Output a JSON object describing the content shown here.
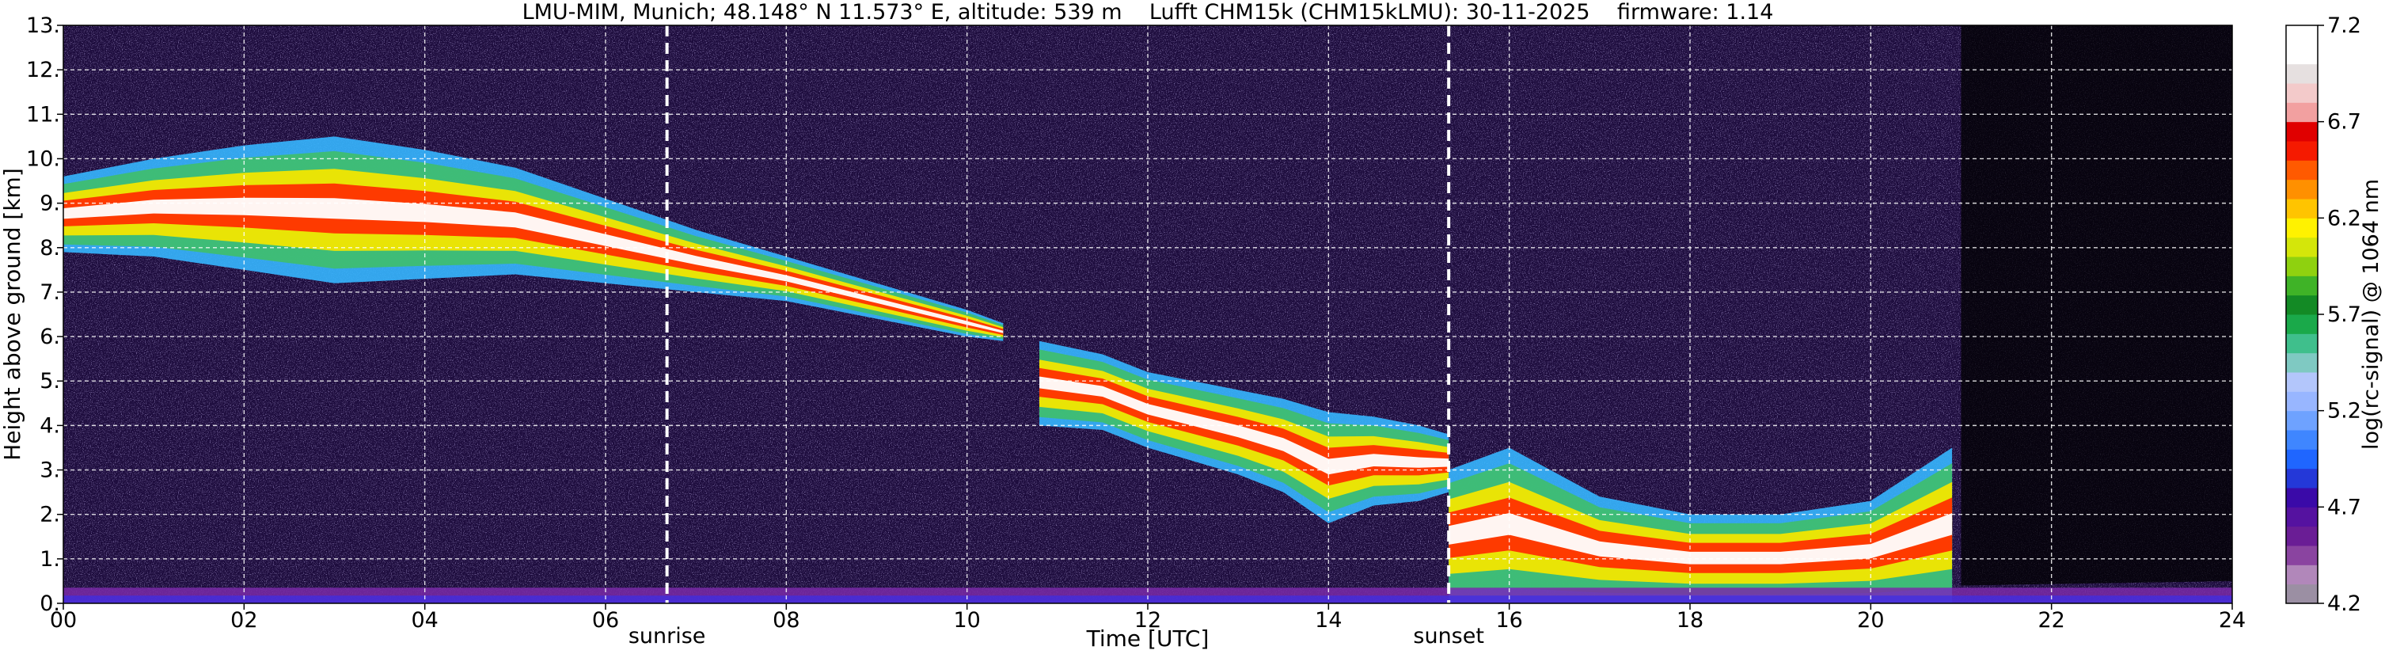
{
  "chart_data": {
    "type": "heatmap",
    "title": "LMU-MIM, Munich; 48.148° N 11.573° E, altitude: 539 m    Lufft CHM15k (CHM15kLMU): 30-11-2025    firmware: 1.14",
    "xlabel": "Time [UTC]",
    "ylabel": "Height above ground [km]",
    "xlim": [
      0,
      24
    ],
    "ylim": [
      0,
      13
    ],
    "x_ticks": [
      0,
      2,
      4,
      6,
      8,
      10,
      12,
      14,
      16,
      18,
      20,
      22,
      24
    ],
    "x_tick_labels": [
      "00",
      "02",
      "04",
      "06",
      "08",
      "10",
      "12",
      "14",
      "16",
      "18",
      "20",
      "22",
      "24"
    ],
    "y_ticks": [
      0,
      1,
      2,
      3,
      4,
      5,
      6,
      7,
      8,
      9,
      10,
      11,
      12,
      13
    ],
    "y_tick_labels": [
      "0.",
      "1.",
      "2.",
      "3.",
      "4.",
      "5.",
      "6.",
      "7.",
      "8.",
      "9.",
      "10.",
      "11.",
      "12.",
      "13."
    ],
    "grid": true,
    "colorbar": {
      "label": "log(rc-signal) @ 1064 nm",
      "range": [
        4.2,
        7.2
      ],
      "ticks": [
        4.2,
        4.7,
        5.2,
        5.7,
        6.2,
        6.7,
        7.2
      ],
      "tick_labels": [
        "4.2",
        "4.7",
        "5.2",
        "5.7",
        "6.2",
        "6.7",
        "7.2"
      ],
      "colors": [
        "#9b8fa3",
        "#b187ba",
        "#8a44a0",
        "#6a1d95",
        "#5512a0",
        "#3a0aa8",
        "#2438d8",
        "#1f66ff",
        "#3f86ff",
        "#6ea2ff",
        "#98b6ff",
        "#b3c6fb",
        "#7fc9c2",
        "#3fbf8c",
        "#1aa94a",
        "#138a25",
        "#3fb327",
        "#8fd10f",
        "#d4e60a",
        "#fff200",
        "#ffc400",
        "#ff9000",
        "#ff5a00",
        "#f51a00",
        "#e00000",
        "#f2a0a0",
        "#f3caca",
        "#e6e0e0",
        "#ffffff",
        "#ffffff"
      ]
    },
    "annotations": [
      {
        "label": "sunrise",
        "x": 6.68
      },
      {
        "label": "sunset",
        "x": 15.33
      }
    ],
    "features": [
      {
        "name": "upper cloud band",
        "x": [
          0.0,
          1.0,
          2.0,
          3.0,
          4.0,
          5.0,
          6.0,
          7.0,
          8.0,
          9.0,
          10.0,
          10.4
        ],
        "base": [
          7.9,
          7.8,
          7.5,
          7.2,
          7.3,
          7.4,
          7.2,
          7.0,
          6.8,
          6.4,
          6.0,
          5.9
        ],
        "top": [
          9.6,
          10.0,
          10.3,
          10.5,
          10.2,
          9.8,
          9.1,
          8.4,
          7.8,
          7.2,
          6.6,
          6.3
        ]
      },
      {
        "name": "descending dense cloud",
        "x": [
          10.8,
          11.5,
          12.0,
          12.5,
          13.0,
          13.5,
          14.0,
          14.5,
          15.0,
          15.33
        ],
        "base": [
          4.0,
          3.9,
          3.5,
          3.2,
          2.9,
          2.5,
          1.8,
          2.2,
          2.3,
          2.5
        ],
        "top": [
          5.9,
          5.6,
          5.2,
          5.0,
          4.8,
          4.6,
          4.3,
          4.2,
          4.0,
          3.8
        ]
      },
      {
        "name": "low cloud layer",
        "x": [
          15.33,
          16.0,
          17.0,
          18.0,
          19.0,
          20.0,
          20.9
        ],
        "base": [
          0.0,
          0.0,
          0.0,
          0.0,
          0.0,
          0.0,
          0.0
        ],
        "top": [
          3.0,
          3.5,
          2.4,
          2.0,
          2.0,
          2.3,
          3.5
        ]
      },
      {
        "name": "boundary layer",
        "x": [
          0.0,
          24.0
        ],
        "base": [
          0.0,
          0.0
        ],
        "top": [
          0.35,
          0.35
        ]
      }
    ]
  }
}
